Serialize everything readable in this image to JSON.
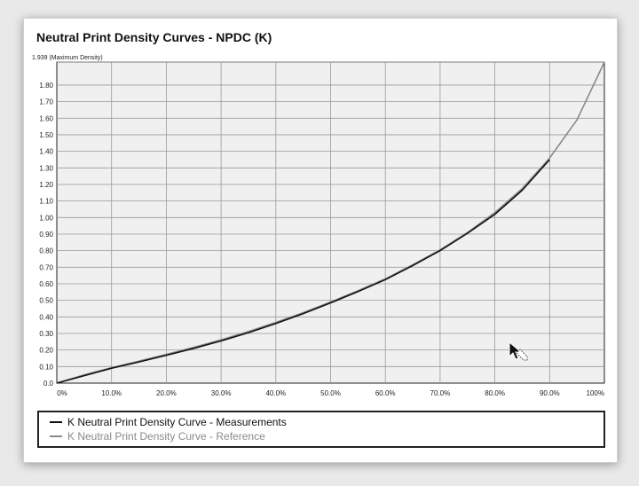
{
  "title": "Neutral Print Density Curves - NPDC (K)",
  "chart_data": {
    "type": "line",
    "title": "Neutral Print Density Curves - NPDC (K)",
    "xlabel": "",
    "ylabel": "",
    "max_label": "1.939 (Maximum Density)",
    "xlim": [
      0,
      100
    ],
    "ylim": [
      0,
      1.939
    ],
    "x_ticks": [
      "0%",
      "10.0%",
      "20.0%",
      "30.0%",
      "40.0%",
      "50.0%",
      "60.0%",
      "70.0%",
      "80.0%",
      "90.0%",
      "100%"
    ],
    "y_ticks": [
      "0.0",
      "0.10",
      "0.20",
      "0.30",
      "0.40",
      "0.50",
      "0.60",
      "0.70",
      "0.80",
      "0.90",
      "1.00",
      "1.10",
      "1.20",
      "1.30",
      "1.40",
      "1.50",
      "1.60",
      "1.70",
      "1.80"
    ],
    "grid": true,
    "legend_position": "bottom",
    "series": [
      {
        "name": "K Neutral Print Density Curve - Measurements",
        "color": "#111111",
        "x": [
          0,
          5,
          10,
          15,
          20,
          25,
          30,
          35,
          40,
          45,
          50,
          55,
          60,
          65,
          70,
          75,
          80,
          85,
          90
        ],
        "y": [
          0,
          0.045,
          0.09,
          0.128,
          0.168,
          0.21,
          0.255,
          0.305,
          0.36,
          0.42,
          0.485,
          0.553,
          0.625,
          0.71,
          0.8,
          0.905,
          1.02,
          1.165,
          1.35
        ]
      },
      {
        "name": "K Neutral Print Density Curve - Reference",
        "color": "#8a8a8a",
        "x": [
          0,
          5,
          10,
          15,
          20,
          25,
          30,
          35,
          40,
          45,
          50,
          55,
          60,
          65,
          70,
          75,
          80,
          85,
          90,
          95,
          100
        ],
        "y": [
          0,
          0.05,
          0.093,
          0.133,
          0.174,
          0.216,
          0.262,
          0.312,
          0.367,
          0.426,
          0.49,
          0.558,
          0.63,
          0.715,
          0.805,
          0.91,
          1.03,
          1.175,
          1.36,
          1.59,
          1.939
        ]
      }
    ]
  },
  "cursor": {
    "icon": "arrow-cursor-icon"
  }
}
